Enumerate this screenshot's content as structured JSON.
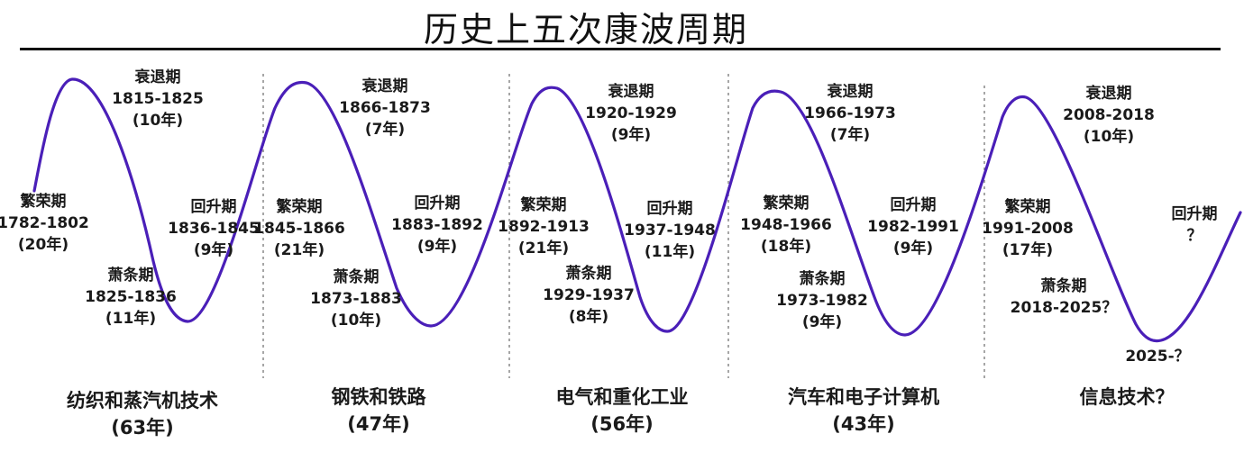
{
  "title": "历史上五次康波周期",
  "colors": {
    "wave": "#4a1fb8",
    "divider": "#888888"
  },
  "cycles": [
    {
      "era": "纺织和蒸汽机技术",
      "duration": "(63年)",
      "boom": {
        "name": "繁荣期",
        "years": "1782-1802",
        "len": "(20年)"
      },
      "recession": {
        "name": "衰退期",
        "years": "1815-1825",
        "len": "(10年)"
      },
      "depression": {
        "name": "萧条期",
        "years": "1825-1836",
        "len": "(11年)"
      },
      "recovery": {
        "name": "回升期",
        "years": "1836-1845",
        "len": "(9年)"
      }
    },
    {
      "era": "钢铁和铁路",
      "duration": "(47年)",
      "boom": {
        "name": "繁荣期",
        "years": "1845-1866",
        "len": "(21年)"
      },
      "recession": {
        "name": "衰退期",
        "years": "1866-1873",
        "len": "(7年)"
      },
      "depression": {
        "name": "萧条期",
        "years": "1873-1883",
        "len": "(10年)"
      },
      "recovery": {
        "name": "回升期",
        "years": "1883-1892",
        "len": "(9年)"
      }
    },
    {
      "era": "电气和重化工业",
      "duration": "(56年)",
      "boom": {
        "name": "繁荣期",
        "years": "1892-1913",
        "len": "(21年)"
      },
      "recession": {
        "name": "衰退期",
        "years": "1920-1929",
        "len": "(9年)"
      },
      "depression": {
        "name": "萧条期",
        "years": "1929-1937",
        "len": "(8年)"
      },
      "recovery": {
        "name": "回升期",
        "years": "1937-1948",
        "len": "(11年)"
      }
    },
    {
      "era": "汽车和电子计算机",
      "duration": "(43年)",
      "boom": {
        "name": "繁荣期",
        "years": "1948-1966",
        "len": "(18年)"
      },
      "recession": {
        "name": "衰退期",
        "years": "1966-1973",
        "len": "(7年)"
      },
      "depression": {
        "name": "萧条期",
        "years": "1973-1982",
        "len": "(9年)"
      },
      "recovery": {
        "name": "回升期",
        "years": "1982-1991",
        "len": "(9年)"
      }
    },
    {
      "era": "信息技术？",
      "duration": "",
      "boom": {
        "name": "繁荣期",
        "years": "1991-2008",
        "len": "(17年)"
      },
      "recession": {
        "name": "衰退期",
        "years": "2008-2018",
        "len": "(10年)"
      },
      "depression": {
        "name": "萧条期",
        "years": "2018-2025？",
        "len": ""
      },
      "recovery": {
        "name": "回升期",
        "years": "？",
        "len": ""
      },
      "trough_label": "2025-？"
    }
  ]
}
